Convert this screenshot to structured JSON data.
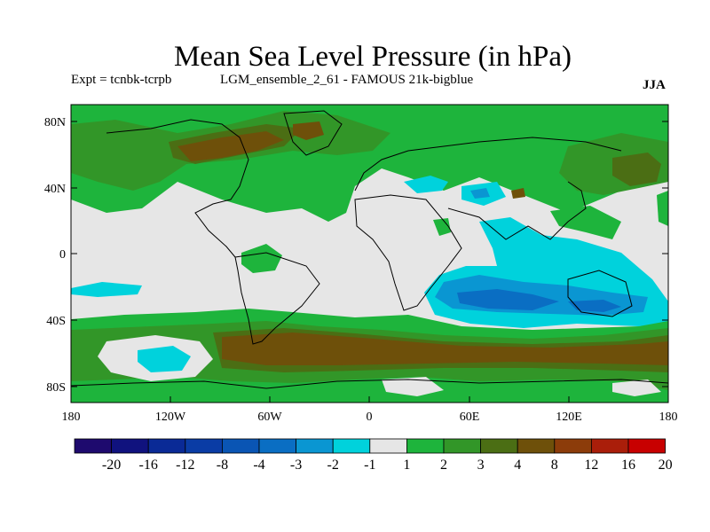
{
  "header": {
    "title": "Mean Sea Level Pressure (in hPa)",
    "expt": "Expt = tcnbk-tcrpb",
    "run": "LGM_ensemble_2_61 - FAMOUS 21k-bigblue",
    "season": "JJA"
  },
  "axes": {
    "y_ticks": [
      "80N",
      "40N",
      "0",
      "40S",
      "80S"
    ],
    "x_ticks": [
      "180",
      "120W",
      "60W",
      "0",
      "60E",
      "120E",
      "180"
    ]
  },
  "colorbar": {
    "labels": [
      "-20",
      "-16",
      "-12",
      "-8",
      "-4",
      "-3",
      "-2",
      "-1",
      "1",
      "2",
      "3",
      "4",
      "8",
      "12",
      "16",
      "20"
    ],
    "colors": [
      "#1e0a6e",
      "#10127e",
      "#0a2a96",
      "#0a3ca5",
      "#0a55b4",
      "#0a6ec3",
      "#0a96d2",
      "#00d2dc",
      "#e6e6e6",
      "#1eb43c",
      "#329628",
      "#4b6e14",
      "#6e500a",
      "#8c3c0a",
      "#aa1e0a",
      "#c80000"
    ]
  },
  "legend_fill": {
    "light_grey": "#e6e6e6",
    "green_1": "#1eb43c",
    "green_2": "#329628",
    "olive": "#4b6e14",
    "brown": "#6e500a",
    "cyan": "#00d2dc",
    "blue_light": "#0a96d2",
    "blue_mid": "#0a6ec3"
  }
}
